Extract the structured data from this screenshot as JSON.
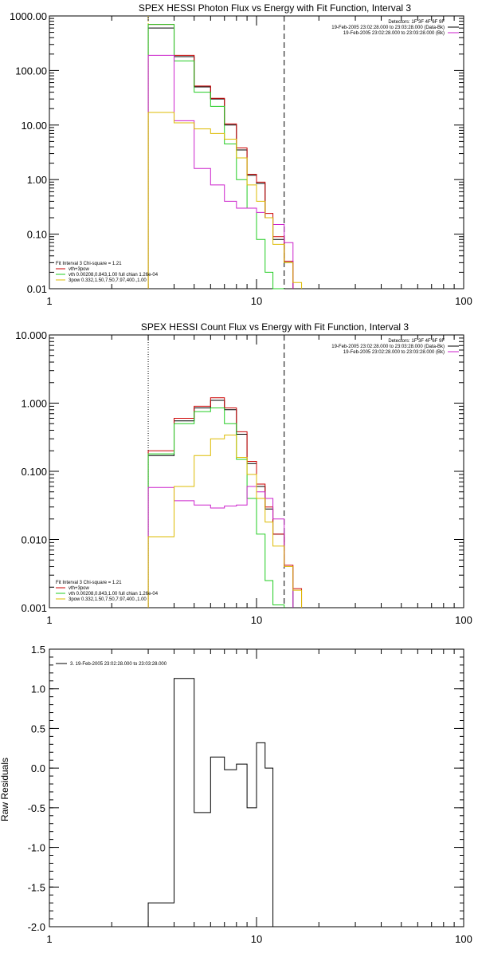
{
  "colors": {
    "black": "#000000",
    "red": "#cc0000",
    "green": "#22cc22",
    "magenta": "#cc22cc",
    "yellow": "#ddbb00"
  },
  "chart_data": [
    {
      "type": "line",
      "title": "SPEX HESSI Photon Flux vs Energy with Fit Function, Interval 3",
      "xscale": "log",
      "yscale": "log",
      "xlim": [
        1,
        100
      ],
      "ylim": [
        0.01,
        1000
      ],
      "xticks": [
        "1",
        "10",
        "100"
      ],
      "yticks": [
        "0.01",
        "0.10",
        "1.00",
        "10.00",
        "100.00",
        "1000.00"
      ],
      "vlines": [
        {
          "x": 3,
          "style": "dotted",
          "color": "#ddbb00"
        },
        {
          "x": 13.6,
          "style": "dashed",
          "color": "#000000"
        }
      ],
      "legend_top": [
        {
          "text": "Detectors: 1F 3F 4F 6F 9F",
          "color": ""
        },
        {
          "text": "19-Feb-2005 23:02:28.000 to 23:03:28.000 (Data-Bk)",
          "color": "#000000"
        },
        {
          "text": "19-Feb-2005 23:02:28.000 to 23:03:28.000 (Bk)",
          "color": "#cc22cc"
        }
      ],
      "legend_fit": [
        {
          "text": "Fit Interval 3    Chi-square = 1.21",
          "color": ""
        },
        {
          "text": "vth+3pow",
          "color": "#cc0000"
        },
        {
          "text": "vth 0.00208,0.843,1.00   full chian 1.26e-04",
          "color": "#22cc22"
        },
        {
          "text": "3pow 0.332,1.50,7.50,7.97,400.,1.00",
          "color": "#ddbb00"
        }
      ],
      "edges": [
        3.0,
        4.0,
        5.0,
        6.0,
        7.0,
        8.0,
        9.0,
        10.0,
        11.0,
        12.0,
        13.6,
        15.0,
        16.5
      ],
      "series": [
        {
          "color": "#000000",
          "values": [
            600,
            180,
            50,
            30,
            10,
            3.5,
            1.2,
            0.85,
            0.2,
            0.08,
            0.03,
            null
          ]
        },
        {
          "color": "#cc0000",
          "values": [
            700,
            190,
            52,
            31,
            10.5,
            3.8,
            1.25,
            0.9,
            0.24,
            0.09,
            0.032,
            null
          ]
        },
        {
          "color": "#22cc22",
          "values": [
            700,
            150,
            40,
            22,
            4.5,
            1.0,
            0.3,
            0.08,
            0.02,
            0.01,
            null,
            null
          ]
        },
        {
          "color": "#cc22cc",
          "values": [
            190,
            12,
            1.6,
            0.8,
            0.4,
            0.3,
            0.3,
            0.25,
            0.2,
            0.15,
            0.07,
            null
          ]
        },
        {
          "color": "#ddbb00",
          "values": [
            17,
            11,
            8.5,
            7,
            5.5,
            2.5,
            0.8,
            0.4,
            0.2,
            0.065,
            0.03,
            0.013
          ]
        }
      ]
    },
    {
      "type": "line",
      "title": "SPEX HESSI Count Flux vs Energy with Fit Function, Interval 3",
      "xscale": "log",
      "yscale": "log",
      "xlim": [
        1,
        100
      ],
      "ylim": [
        0.001,
        10
      ],
      "xticks": [
        "1",
        "10",
        "100"
      ],
      "yticks": [
        "0.001",
        "0.010",
        "0.100",
        "1.000",
        "10.000"
      ],
      "vlines": [
        {
          "x": 3,
          "style": "dotted",
          "color": "#000000"
        },
        {
          "x": 13.6,
          "style": "dashed",
          "color": "#000000"
        }
      ],
      "legend_top": [
        {
          "text": "Detectors: 1F 3F 4F 6F 9F",
          "color": ""
        },
        {
          "text": "19-Feb-2005 23:02:28.000 to 23:03:28.000 (Data-Bk)",
          "color": "#000000"
        },
        {
          "text": "19-Feb-2005 23:02:28.000 to 23:03:28.000 (Bk)",
          "color": "#cc22cc"
        }
      ],
      "legend_fit": [
        {
          "text": "Fit Interval 3    Chi-square = 1.21",
          "color": ""
        },
        {
          "text": "vth+3pow",
          "color": "#cc0000"
        },
        {
          "text": "vth 0.00208,0.843,1.00   full chian 1.26e-04",
          "color": "#22cc22"
        },
        {
          "text": "3pow 0.332,1.50,7.50,7.97,400.,1.00",
          "color": "#ddbb00"
        }
      ],
      "edges": [
        3.0,
        4.0,
        5.0,
        6.0,
        7.0,
        8.0,
        9.0,
        10.0,
        11.0,
        12.0,
        13.6,
        15.0,
        16.5
      ],
      "series": [
        {
          "color": "#000000",
          "values": [
            0.17,
            0.55,
            0.85,
            1.1,
            0.8,
            0.35,
            0.13,
            0.06,
            0.028,
            0.012,
            0.004,
            null
          ]
        },
        {
          "color": "#cc0000",
          "values": [
            0.2,
            0.6,
            0.9,
            1.2,
            0.85,
            0.38,
            0.14,
            0.065,
            0.03,
            0.012,
            0.0042,
            0.0019
          ]
        },
        {
          "color": "#22cc22",
          "values": [
            0.18,
            0.5,
            0.75,
            0.85,
            0.5,
            0.15,
            0.04,
            0.012,
            0.0025,
            0.0011,
            null,
            null
          ]
        },
        {
          "color": "#cc22cc",
          "values": [
            0.058,
            0.037,
            0.032,
            0.029,
            0.031,
            0.032,
            0.06,
            0.05,
            0.04,
            0.02,
            0.004,
            null
          ]
        },
        {
          "color": "#ddbb00",
          "values": [
            0.011,
            0.06,
            0.17,
            0.3,
            0.34,
            0.16,
            0.09,
            0.04,
            0.018,
            0.008,
            0.004,
            0.0018
          ]
        }
      ]
    },
    {
      "type": "line",
      "title": "",
      "ylabel": "Raw Residuals",
      "xscale": "log",
      "yscale": "linear",
      "xlim": [
        1,
        100
      ],
      "ylim": [
        -2.0,
        1.5
      ],
      "xticks": [
        "1",
        "10",
        "100"
      ],
      "yticks": [
        "-2.0",
        "-1.5",
        "-1.0",
        "-0.5",
        "0.0",
        "0.5",
        "1.0",
        "1.5"
      ],
      "legend": "3. 19-Feb-2005 23:02:28.000 to 23:03:28.000",
      "edges": [
        3.0,
        4.0,
        5.0,
        6.0,
        7.0,
        8.0,
        9.0,
        10.0,
        11.0,
        12.0,
        13.6
      ],
      "series": [
        {
          "color": "#000000",
          "values": [
            -1.7,
            1.13,
            -0.56,
            0.14,
            -0.02,
            0.05,
            -0.5,
            0.32,
            0.0,
            -2.0
          ]
        }
      ]
    }
  ]
}
